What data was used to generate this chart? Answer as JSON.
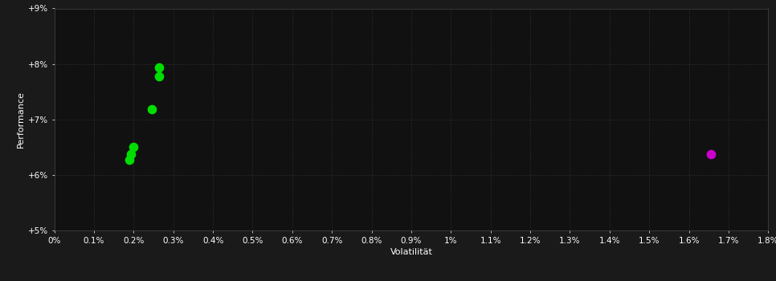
{
  "background_color": "#1a1a1a",
  "plot_bg_color": "#111111",
  "grid_color": "#333333",
  "xlabel": "Volatilität",
  "ylabel": "Performance",
  "xlim": [
    0.0,
    0.018
  ],
  "ylim": [
    0.05,
    0.09
  ],
  "xtick_labels": [
    "0%",
    "0.1%",
    "0.2%",
    "0.3%",
    "0.4%",
    "0.5%",
    "0.6%",
    "0.7%",
    "0.8%",
    "0.9%",
    "1%",
    "1.1%",
    "1.2%",
    "1.3%",
    "1.4%",
    "1.5%",
    "1.6%",
    "1.7%",
    "1.8%"
  ],
  "xtick_vals": [
    0.0,
    0.001,
    0.002,
    0.003,
    0.004,
    0.005,
    0.006,
    0.007,
    0.008,
    0.009,
    0.01,
    0.011,
    0.012,
    0.013,
    0.014,
    0.015,
    0.016,
    0.017,
    0.018
  ],
  "ytick_labels": [
    "+5%",
    "+6%",
    "+7%",
    "+8%",
    "+9%"
  ],
  "ytick_vals": [
    0.05,
    0.06,
    0.07,
    0.08,
    0.09
  ],
  "green_points": [
    [
      0.00265,
      0.0793
    ],
    [
      0.00265,
      0.0778
    ],
    [
      0.00245,
      0.0718
    ],
    [
      0.002,
      0.065
    ],
    [
      0.00193,
      0.0638
    ],
    [
      0.0019,
      0.0628
    ]
  ],
  "magenta_points": [
    [
      0.01655,
      0.0638
    ]
  ],
  "green_color": "#00dd00",
  "magenta_color": "#cc00cc",
  "marker_size": 55,
  "text_color": "#ffffff",
  "axis_label_fontsize": 8,
  "tick_fontsize": 7.5
}
